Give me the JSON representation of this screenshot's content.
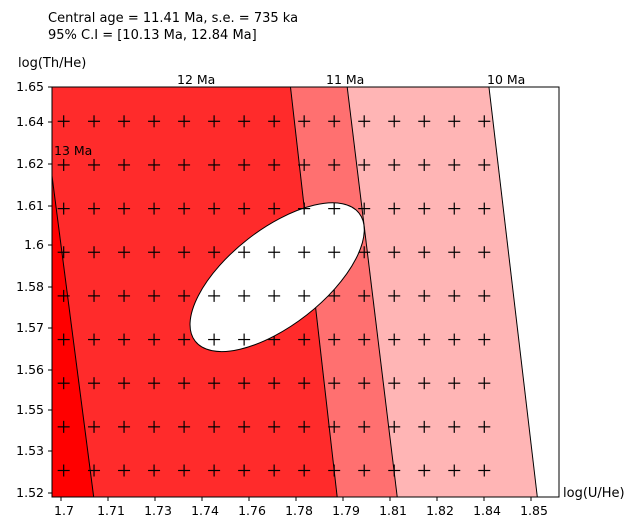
{
  "header": {
    "line1": "Central age = 11.41 Ma, s.e. = 735 ka",
    "line2": "95% C.I = [10.13 Ma, 12.84 Ma]"
  },
  "chart_data": {
    "type": "scatter",
    "title": "",
    "xlabel": "log(U/He)",
    "ylabel": "log(Th/He)",
    "xlim": [
      1.697,
      1.849
    ],
    "ylim": [
      1.5185,
      1.65
    ],
    "x_ticks": [
      "1.7",
      "1.71",
      "1.73",
      "1.74",
      "1.76",
      "1.78",
      "1.79",
      "1.81",
      "1.82",
      "1.84",
      "1.85"
    ],
    "y_ticks": [
      "1.52",
      "1.53",
      "1.55",
      "1.56",
      "1.57",
      "1.58",
      "1.6",
      "1.61",
      "1.62",
      "1.64",
      "1.65"
    ],
    "bands": [
      {
        "label": "13 Ma",
        "color": "#ff2b2b"
      },
      {
        "label": "12 Ma",
        "color": "#ff7070"
      },
      {
        "label": "11 Ma",
        "color": "#ffb5b5"
      },
      {
        "label": "10 Ma",
        "color": "#ffffff"
      }
    ],
    "contours": [
      {
        "label": "13 Ma",
        "top": [
          1.697,
          1.6215
        ],
        "bottom": [
          1.7095,
          1.5185
        ]
      },
      {
        "label": "12 Ma",
        "top": [
          1.7685,
          1.65
        ],
        "bottom": [
          1.7825,
          1.5185
        ]
      },
      {
        "label": "11 Ma",
        "top": [
          1.7855,
          1.65
        ],
        "bottom": [
          1.8005,
          1.5185
        ]
      },
      {
        "label": "10 Ma",
        "top": [
          1.828,
          1.65
        ],
        "bottom": [
          1.8425,
          1.5185
        ]
      }
    ],
    "ellipse": {
      "cx": 1.7645,
      "cy": 1.589,
      "rx": 0.0118,
      "ry": 0.017
    },
    "grid_points_x": [
      1.7,
      1.705,
      1.71,
      1.715,
      1.72,
      1.725,
      1.73,
      1.735,
      1.74,
      1.745,
      1.75,
      1.755,
      1.76,
      1.765,
      1.77,
      1.775,
      1.78,
      1.785,
      1.79,
      1.795,
      1.8,
      1.805,
      1.81,
      1.815,
      1.82,
      1.825,
      1.83,
      1.835,
      1.84
    ],
    "grid_points_y": [
      1.527,
      1.541,
      1.555,
      1.569,
      1.583,
      1.597,
      1.611,
      1.625,
      1.639
    ]
  }
}
